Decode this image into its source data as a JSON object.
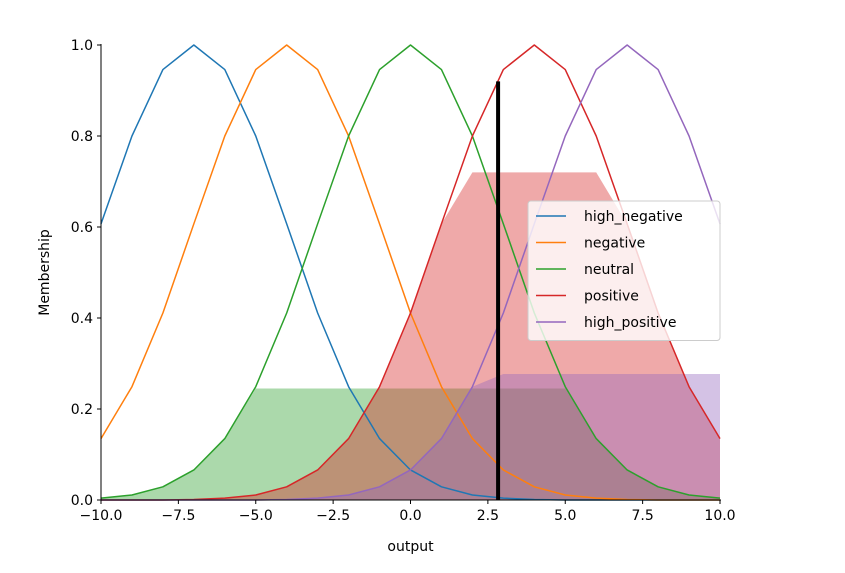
{
  "chart_data": {
    "type": "line",
    "xlabel": "output",
    "ylabel": "Membership",
    "xlim": [
      -10,
      10
    ],
    "ylim": [
      0,
      1.0
    ],
    "xticks": [
      -10,
      -7.5,
      -5,
      -2.5,
      0,
      2.5,
      5,
      7.5,
      10
    ],
    "xtick_labels": [
      "−10.0",
      "−7.5",
      "−5.0",
      "−2.5",
      "0.0",
      "2.5",
      "5.0",
      "7.5",
      "10.0"
    ],
    "yticks": [
      0,
      0.2,
      0.4,
      0.6,
      0.8,
      1.0
    ],
    "ytick_labels": [
      "0.0",
      "0.2",
      "0.4",
      "0.6",
      "0.8",
      "1.0"
    ],
    "x": [
      -10,
      -9,
      -8,
      -7,
      -6,
      -5,
      -4,
      -3,
      -2,
      -1,
      0,
      1,
      2,
      3,
      4,
      5,
      6,
      7,
      8,
      9,
      10
    ],
    "series": [
      {
        "name": "high_negative",
        "color": "#1f77b4",
        "values": [
          0.607,
          0.8,
          0.946,
          1.0,
          0.946,
          0.8,
          0.607,
          0.411,
          0.249,
          0.135,
          0.066,
          0.029,
          0.011,
          0.004,
          0.001,
          0.0,
          0.0,
          0.0,
          0.0,
          0.0,
          0.0
        ]
      },
      {
        "name": "negative",
        "color": "#ff7f0e",
        "values": [
          0.135,
          0.249,
          0.411,
          0.607,
          0.8,
          0.946,
          1.0,
          0.946,
          0.8,
          0.607,
          0.411,
          0.249,
          0.135,
          0.066,
          0.029,
          0.011,
          0.004,
          0.001,
          0.0,
          0.0,
          0.0
        ]
      },
      {
        "name": "neutral",
        "color": "#2ca02c",
        "values": [
          0.004,
          0.011,
          0.029,
          0.066,
          0.135,
          0.249,
          0.411,
          0.607,
          0.8,
          0.946,
          1.0,
          0.946,
          0.8,
          0.607,
          0.411,
          0.249,
          0.135,
          0.066,
          0.029,
          0.011,
          0.004
        ]
      },
      {
        "name": "positive",
        "color": "#d62728",
        "values": [
          0.0,
          0.0,
          0.0,
          0.001,
          0.004,
          0.011,
          0.029,
          0.066,
          0.135,
          0.249,
          0.411,
          0.607,
          0.8,
          0.946,
          1.0,
          0.946,
          0.8,
          0.607,
          0.411,
          0.249,
          0.135
        ]
      },
      {
        "name": "high_positive",
        "color": "#9467bd",
        "values": [
          0.0,
          0.0,
          0.0,
          0.0,
          0.0,
          0.0,
          0.001,
          0.004,
          0.011,
          0.029,
          0.066,
          0.135,
          0.249,
          0.411,
          0.607,
          0.8,
          0.946,
          1.0,
          0.946,
          0.8,
          0.607
        ]
      }
    ],
    "activations": [
      {
        "series": "neutral",
        "level": 0.245,
        "color": "#2ca02c"
      },
      {
        "series": "positive",
        "level": 0.72,
        "color": "#d62728"
      },
      {
        "series": "high_positive",
        "level": 0.277,
        "color": "#9467bd"
      }
    ],
    "crisp_output": {
      "x": 2.83,
      "y": 0.92,
      "color": "#000000"
    },
    "legend_position": "center-right",
    "grid": false
  }
}
